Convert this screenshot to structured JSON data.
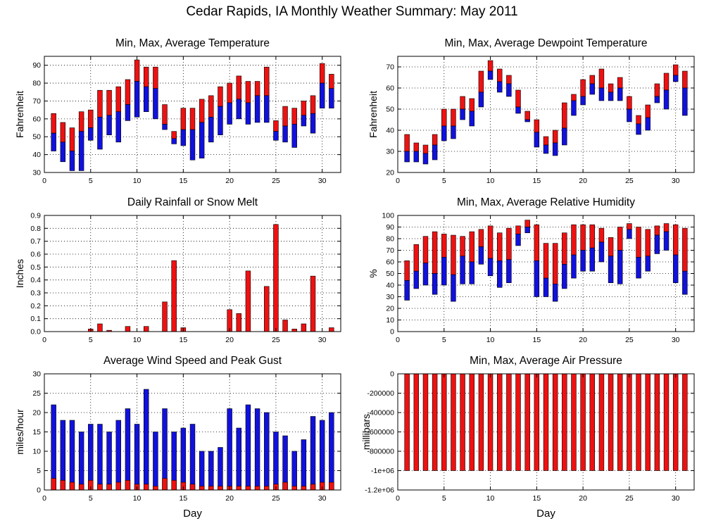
{
  "title": "Cedar Rapids, IA Monthly Weather Summary: May 2011",
  "colors": {
    "max_bar": "#ee1111",
    "min_bar": "#1111dd",
    "grid": "#000000"
  },
  "chart_data": [
    {
      "id": "temperature",
      "type": "bar",
      "subtype": "range",
      "title": "Min, Max, Average Temperature",
      "xlabel": "",
      "ylabel": "Fahrenheit",
      "xlim": [
        0,
        32
      ],
      "ylim": [
        30,
        95
      ],
      "yticks": [
        30,
        40,
        50,
        60,
        70,
        80,
        90
      ],
      "ytick_labels": [
        "30",
        "40",
        "50",
        "60",
        "70",
        "80",
        "90"
      ],
      "xticks": [
        0,
        5,
        10,
        15,
        20,
        25,
        30
      ],
      "grid": true,
      "x": [
        1,
        2,
        3,
        4,
        5,
        6,
        7,
        8,
        9,
        10,
        11,
        12,
        13,
        14,
        15,
        16,
        17,
        18,
        19,
        20,
        21,
        22,
        23,
        24,
        25,
        26,
        27,
        28,
        29,
        30,
        31
      ],
      "min": [
        42,
        36,
        31,
        31,
        48,
        43,
        51,
        47,
        59,
        61,
        64,
        60,
        54,
        46,
        45,
        37,
        38,
        47,
        51,
        57,
        60,
        57,
        58,
        58,
        48,
        47,
        44,
        56,
        52,
        66,
        66
      ],
      "avg": [
        52,
        47,
        42,
        53,
        55,
        61,
        62,
        64,
        68,
        81,
        78,
        77,
        57,
        49,
        54,
        54,
        58,
        61,
        67,
        69,
        71,
        69,
        73,
        73,
        53,
        56,
        57,
        62,
        63,
        80,
        77
      ],
      "max": [
        63,
        58,
        55,
        64,
        65,
        76,
        76,
        78,
        82,
        93,
        89,
        89,
        68,
        53,
        66,
        66,
        71,
        73,
        78,
        80,
        84,
        81,
        81,
        89,
        59,
        67,
        66,
        70,
        73,
        91,
        85
      ]
    },
    {
      "id": "dewpoint",
      "type": "bar",
      "subtype": "range",
      "title": "Min, Max, Average Dewpoint Temperature",
      "xlabel": "",
      "ylabel": "Fahrenheit",
      "xlim": [
        0,
        32
      ],
      "ylim": [
        20,
        75
      ],
      "yticks": [
        20,
        30,
        40,
        50,
        60,
        70
      ],
      "ytick_labels": [
        "20",
        "30",
        "40",
        "50",
        "60",
        "70"
      ],
      "xticks": [
        0,
        5,
        10,
        15,
        20,
        25,
        30
      ],
      "grid": true,
      "x": [
        1,
        2,
        3,
        4,
        5,
        6,
        7,
        8,
        9,
        10,
        11,
        12,
        13,
        14,
        15,
        16,
        17,
        18,
        19,
        20,
        21,
        22,
        23,
        24,
        25,
        26,
        27,
        28,
        29,
        30,
        31
      ],
      "min": [
        25,
        25,
        24,
        26,
        35,
        36,
        45,
        42,
        51,
        64,
        58,
        56,
        48,
        44,
        32,
        29,
        28,
        33,
        47,
        52,
        57,
        54,
        54,
        54,
        44,
        38,
        40,
        53,
        50,
        63,
        47
      ],
      "avg": [
        30,
        30,
        29,
        33,
        42,
        42,
        50,
        49,
        58,
        68,
        63,
        62,
        51,
        45,
        39,
        33,
        34,
        41,
        54,
        56,
        62,
        60,
        58,
        60,
        50,
        43,
        46,
        56,
        59,
        66,
        60
      ],
      "max": [
        38,
        34,
        33,
        38,
        50,
        50,
        56,
        55,
        68,
        73,
        69,
        66,
        59,
        49,
        45,
        37,
        40,
        53,
        57,
        64,
        66,
        69,
        62,
        65,
        56,
        47,
        52,
        62,
        67,
        71,
        68
      ]
    },
    {
      "id": "rainfall",
      "type": "bar",
      "title": "Daily Rainfall or Snow Melt",
      "xlabel": "",
      "ylabel": "Inches",
      "xlim": [
        0,
        32
      ],
      "ylim": [
        0,
        0.9
      ],
      "yticks": [
        0,
        0.1,
        0.2,
        0.3,
        0.4,
        0.5,
        0.6,
        0.7,
        0.8,
        0.9
      ],
      "ytick_labels": [
        "0.0",
        "0.1",
        "0.2",
        "0.3",
        "0.4",
        "0.5",
        "0.6",
        "0.7",
        "0.8",
        "0.9"
      ],
      "xticks": [
        0,
        5,
        10,
        15,
        20,
        25,
        30
      ],
      "grid": true,
      "x": [
        1,
        2,
        3,
        4,
        5,
        6,
        7,
        8,
        9,
        10,
        11,
        12,
        13,
        14,
        15,
        16,
        17,
        18,
        19,
        20,
        21,
        22,
        23,
        24,
        25,
        26,
        27,
        28,
        29,
        30,
        31
      ],
      "values": [
        0,
        0,
        0,
        0,
        0.02,
        0.06,
        0.01,
        0,
        0.04,
        0,
        0.04,
        0,
        0.23,
        0.55,
        0.03,
        0,
        0,
        0,
        0,
        0.17,
        0.14,
        0.47,
        0,
        0.35,
        0.83,
        0.09,
        0.02,
        0.06,
        0.43,
        0,
        0.03
      ]
    },
    {
      "id": "humidity",
      "type": "bar",
      "subtype": "range",
      "title": "Min, Max, Average Relative Humidity",
      "xlabel": "",
      "ylabel": "%",
      "xlim": [
        0,
        32
      ],
      "ylim": [
        0,
        100
      ],
      "yticks": [
        0,
        10,
        20,
        30,
        40,
        50,
        60,
        70,
        80,
        90,
        100
      ],
      "ytick_labels": [
        "0",
        "10",
        "20",
        "30",
        "40",
        "50",
        "60",
        "70",
        "80",
        "90",
        "100"
      ],
      "xticks": [
        0,
        5,
        10,
        15,
        20,
        25,
        30
      ],
      "grid": true,
      "x": [
        1,
        2,
        3,
        4,
        5,
        6,
        7,
        8,
        9,
        10,
        11,
        12,
        13,
        14,
        15,
        16,
        17,
        18,
        19,
        20,
        21,
        22,
        23,
        24,
        25,
        26,
        27,
        28,
        29,
        30,
        31
      ],
      "min": [
        27,
        37,
        40,
        32,
        40,
        26,
        41,
        41,
        58,
        48,
        38,
        42,
        74,
        85,
        30,
        30,
        26,
        37,
        46,
        52,
        52,
        60,
        42,
        41,
        80,
        46,
        52,
        67,
        70,
        42,
        32
      ],
      "avg": [
        44,
        52,
        59,
        50,
        64,
        49,
        65,
        60,
        73,
        63,
        61,
        62,
        84,
        90,
        61,
        46,
        41,
        58,
        66,
        70,
        72,
        77,
        65,
        70,
        88,
        64,
        65,
        83,
        86,
        66,
        52
      ],
      "max": [
        61,
        75,
        82,
        86,
        84,
        83,
        82,
        86,
        88,
        91,
        85,
        89,
        91,
        96,
        92,
        76,
        76,
        85,
        92,
        92,
        92,
        89,
        81,
        90,
        93,
        90,
        88,
        91,
        93,
        92,
        89
      ]
    },
    {
      "id": "wind",
      "type": "bar",
      "subtype": "stacked",
      "title": "Average Wind Speed and Peak Gust",
      "xlabel": "Day",
      "ylabel": "miles/hour",
      "xlim": [
        0,
        32
      ],
      "ylim": [
        0,
        30
      ],
      "yticks": [
        0,
        5,
        10,
        15,
        20,
        25,
        30
      ],
      "ytick_labels": [
        "0",
        "5",
        "10",
        "15",
        "20",
        "25",
        "30"
      ],
      "xticks": [
        0,
        5,
        10,
        15,
        20,
        25,
        30
      ],
      "grid": true,
      "x": [
        1,
        2,
        3,
        4,
        5,
        6,
        7,
        8,
        9,
        10,
        11,
        12,
        13,
        14,
        15,
        16,
        17,
        18,
        19,
        20,
        21,
        22,
        23,
        24,
        25,
        26,
        27,
        28,
        29,
        30,
        31
      ],
      "avg_speed": [
        3,
        2.5,
        2,
        1.5,
        2.5,
        1.5,
        1.5,
        2,
        2.5,
        1.5,
        1.5,
        1,
        3,
        2.5,
        2,
        1.5,
        1,
        1,
        1,
        1,
        1,
        1,
        1,
        1,
        1.5,
        2,
        1,
        1,
        1.5,
        2,
        2
      ],
      "peak_gust": [
        22,
        18,
        18,
        15,
        17,
        17,
        15,
        18,
        21,
        17,
        26,
        15,
        21,
        15,
        16,
        17,
        10,
        10,
        11,
        21,
        16,
        22,
        21,
        20,
        15,
        14,
        10,
        13,
        19,
        18,
        20
      ]
    },
    {
      "id": "pressure",
      "type": "bar",
      "subtype": "range",
      "title": "Min, Max, Average Air Pressure",
      "xlabel": "Day",
      "ylabel": "millibars",
      "xlim": [
        0,
        32
      ],
      "ylim": [
        -1200000,
        0
      ],
      "yticks": [
        -1200000,
        -1000000,
        -800000,
        -600000,
        -400000,
        -200000,
        0
      ],
      "ytick_labels": [
        "-1.2e+06",
        "-1e+06",
        "-800000",
        "-600000",
        "-400000",
        "-200000",
        "0"
      ],
      "xticks": [
        0,
        5,
        10,
        15,
        20,
        25,
        30
      ],
      "grid": true,
      "x": [
        1,
        2,
        3,
        4,
        5,
        6,
        7,
        8,
        9,
        10,
        11,
        12,
        13,
        14,
        15,
        16,
        17,
        18,
        19,
        20,
        21,
        22,
        23,
        24,
        25,
        26,
        27,
        28,
        29,
        30,
        31
      ],
      "min": [
        -999900,
        -999900,
        -999900,
        -999900,
        -999900,
        -999900,
        -999900,
        -999900,
        -999900,
        -999900,
        -999900,
        -999900,
        -999900,
        -999900,
        -999900,
        -999900,
        -999900,
        -999900,
        -999900,
        -999900,
        -999900,
        -999900,
        -999900,
        -999900,
        -999900,
        -999900,
        -999900,
        -999900,
        -999900,
        -999900,
        -999900
      ],
      "max": [
        0,
        0,
        0,
        0,
        0,
        0,
        0,
        0,
        0,
        0,
        0,
        0,
        0,
        0,
        0,
        0,
        0,
        0,
        0,
        0,
        0,
        0,
        0,
        0,
        0,
        0,
        0,
        0,
        0,
        0,
        0
      ]
    }
  ]
}
